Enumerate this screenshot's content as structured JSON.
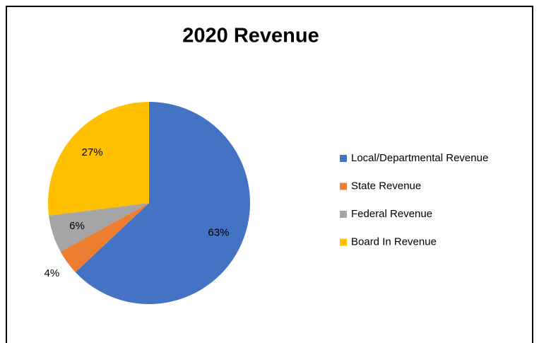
{
  "chart_data": {
    "type": "pie",
    "title": "2020 Revenue",
    "categories": [
      "Local/Departmental Revenue",
      "State Revenue",
      "Federal Revenue",
      "Board In Revenue"
    ],
    "values": [
      63,
      4,
      6,
      27
    ],
    "value_labels": [
      "63%",
      "4%",
      "6%",
      "27%"
    ],
    "colors": [
      "#4472c4",
      "#ed7d31",
      "#a5a5a5",
      "#ffc000"
    ],
    "legend": "right"
  }
}
